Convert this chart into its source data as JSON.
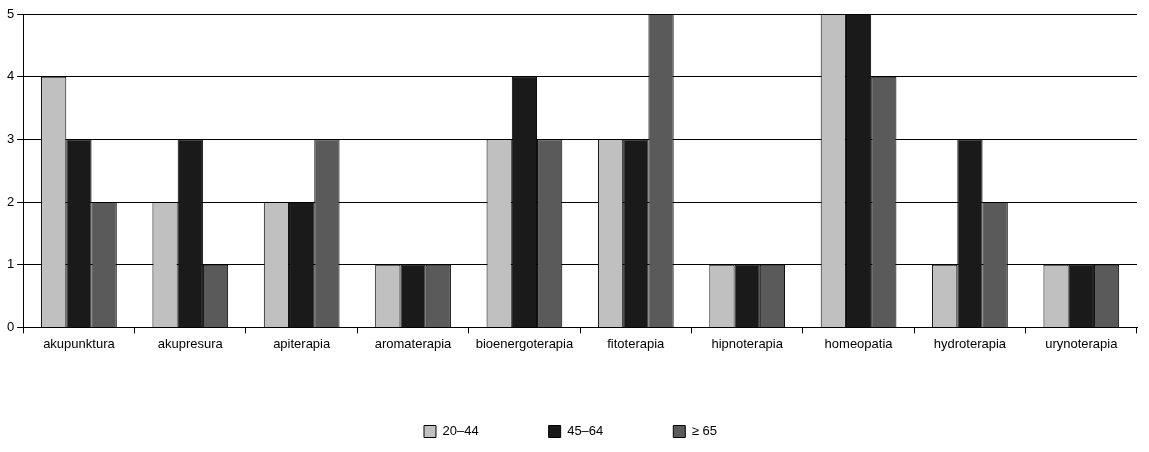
{
  "chart_data": {
    "type": "bar",
    "categories": [
      "akupunktura",
      "akupresura",
      "apiterapia",
      "aromaterapia",
      "bioenergoterapia",
      "fitoterapia",
      "hipnoterapia",
      "homeopatia",
      "hydroterapia",
      "urynoterapia"
    ],
    "series": [
      {
        "name": "20–44",
        "color": "#c0c0c0",
        "values": [
          4,
          2,
          2,
          1,
          3,
          3,
          1,
          5,
          1,
          1
        ]
      },
      {
        "name": "45–64",
        "color": "#1a1a1a",
        "values": [
          3,
          3,
          2,
          1,
          4,
          3,
          1,
          5,
          3,
          1
        ]
      },
      {
        "name": "≥ 65",
        "color": "#5a5a5a",
        "values": [
          2,
          1,
          3,
          1,
          3,
          5,
          1,
          4,
          2,
          1
        ]
      }
    ],
    "ylim": [
      0,
      5
    ],
    "yticks": [
      0,
      1,
      2,
      3,
      4,
      5
    ],
    "grid": "y",
    "legend": "bottom"
  }
}
